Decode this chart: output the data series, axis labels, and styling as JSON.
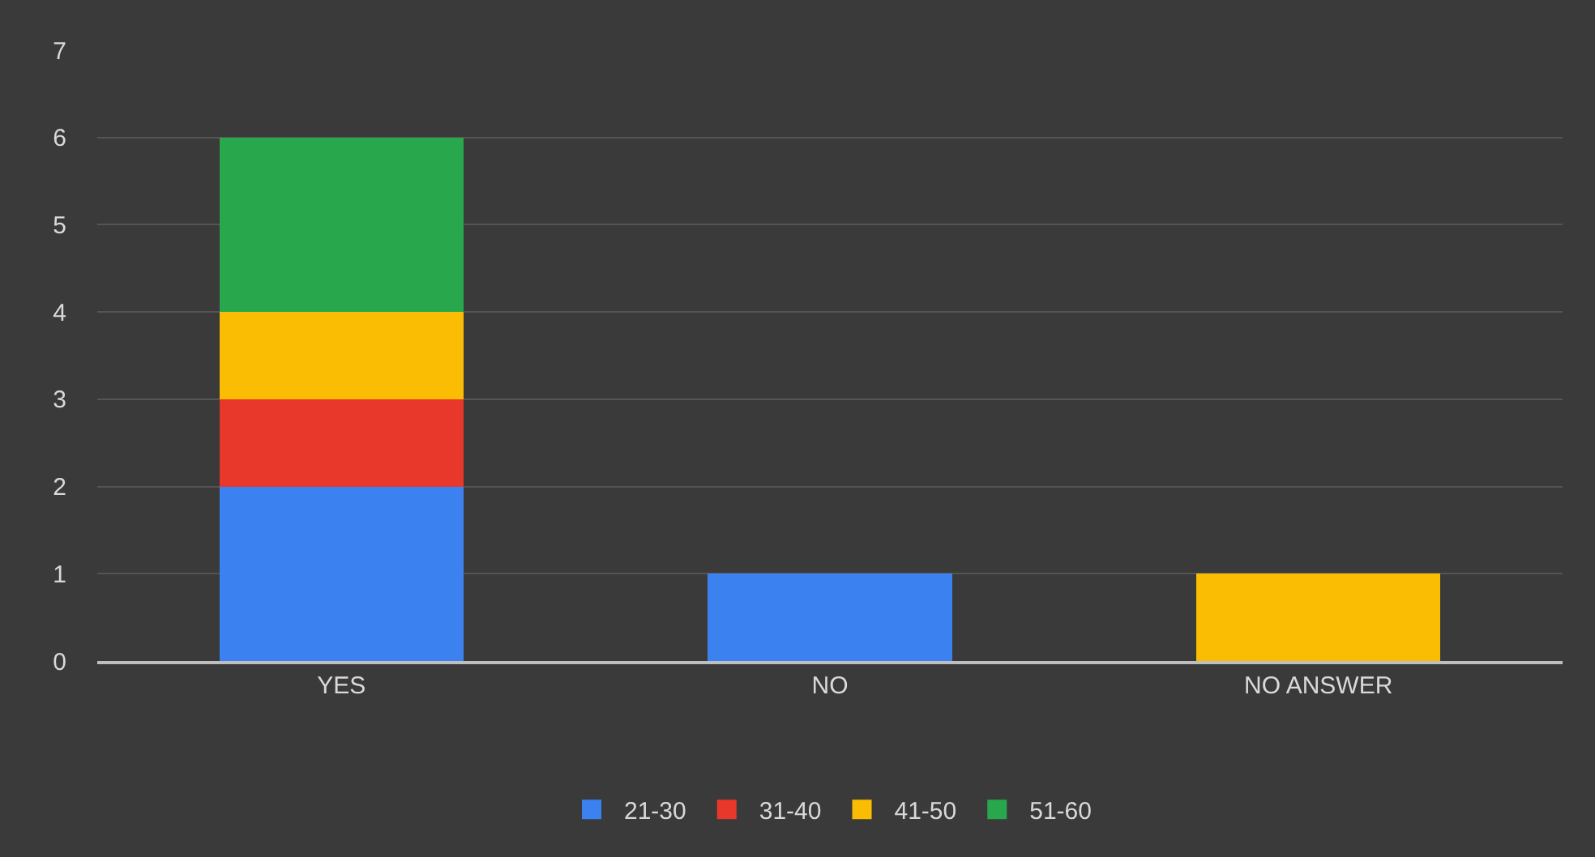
{
  "chart_data": {
    "type": "bar",
    "stacked": true,
    "categories": [
      "YES",
      "NO",
      "NO ANSWER"
    ],
    "series": [
      {
        "name": "21-30",
        "color": "#3b82f0",
        "values": [
          2,
          1,
          null
        ]
      },
      {
        "name": "31-40",
        "color": "#e8372b",
        "values": [
          1,
          null,
          null
        ]
      },
      {
        "name": "41-50",
        "color": "#fbbc04",
        "values": [
          1,
          null,
          1
        ]
      },
      {
        "name": "51-60",
        "color": "#29a74c",
        "values": [
          2,
          null,
          null
        ]
      }
    ],
    "ylim": [
      0,
      7
    ],
    "yticks": [
      0,
      1,
      2,
      3,
      4,
      5,
      6,
      7
    ],
    "grid": "y",
    "legend": "bottom"
  }
}
